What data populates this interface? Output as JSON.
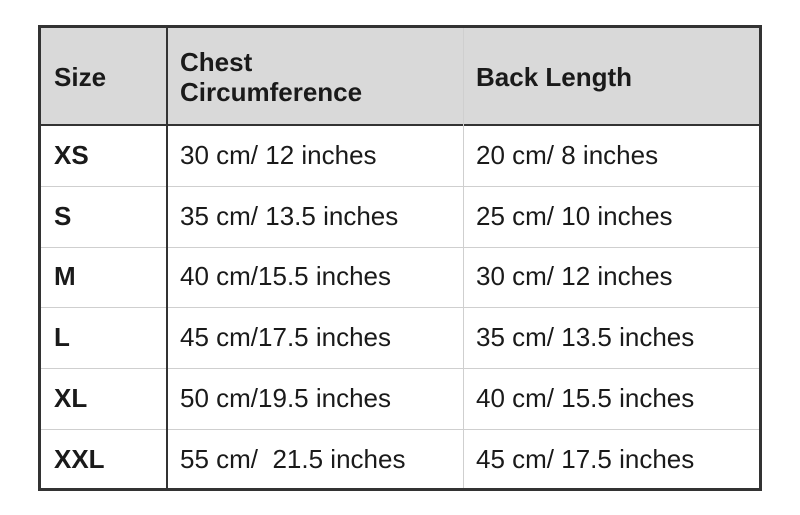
{
  "table": {
    "header": [
      "Size",
      "Chest Circumference",
      "Back Length"
    ],
    "rows": [
      [
        "XS",
        "30 cm/ 12 inches",
        "20 cm/ 8 inches"
      ],
      [
        "S",
        "35 cm/ 13.5 inches",
        "25 cm/ 10 inches"
      ],
      [
        "M",
        "40 cm/15.5 inches",
        "30 cm/ 12 inches"
      ],
      [
        "L",
        "45 cm/17.5 inches",
        "35 cm/ 13.5 inches"
      ],
      [
        "XL",
        "50 cm/19.5 inches",
        "40 cm/ 15.5 inches"
      ],
      [
        "XXL",
        "55 cm/  21.5 inches",
        "45 cm/ 17.5 inches"
      ]
    ]
  }
}
